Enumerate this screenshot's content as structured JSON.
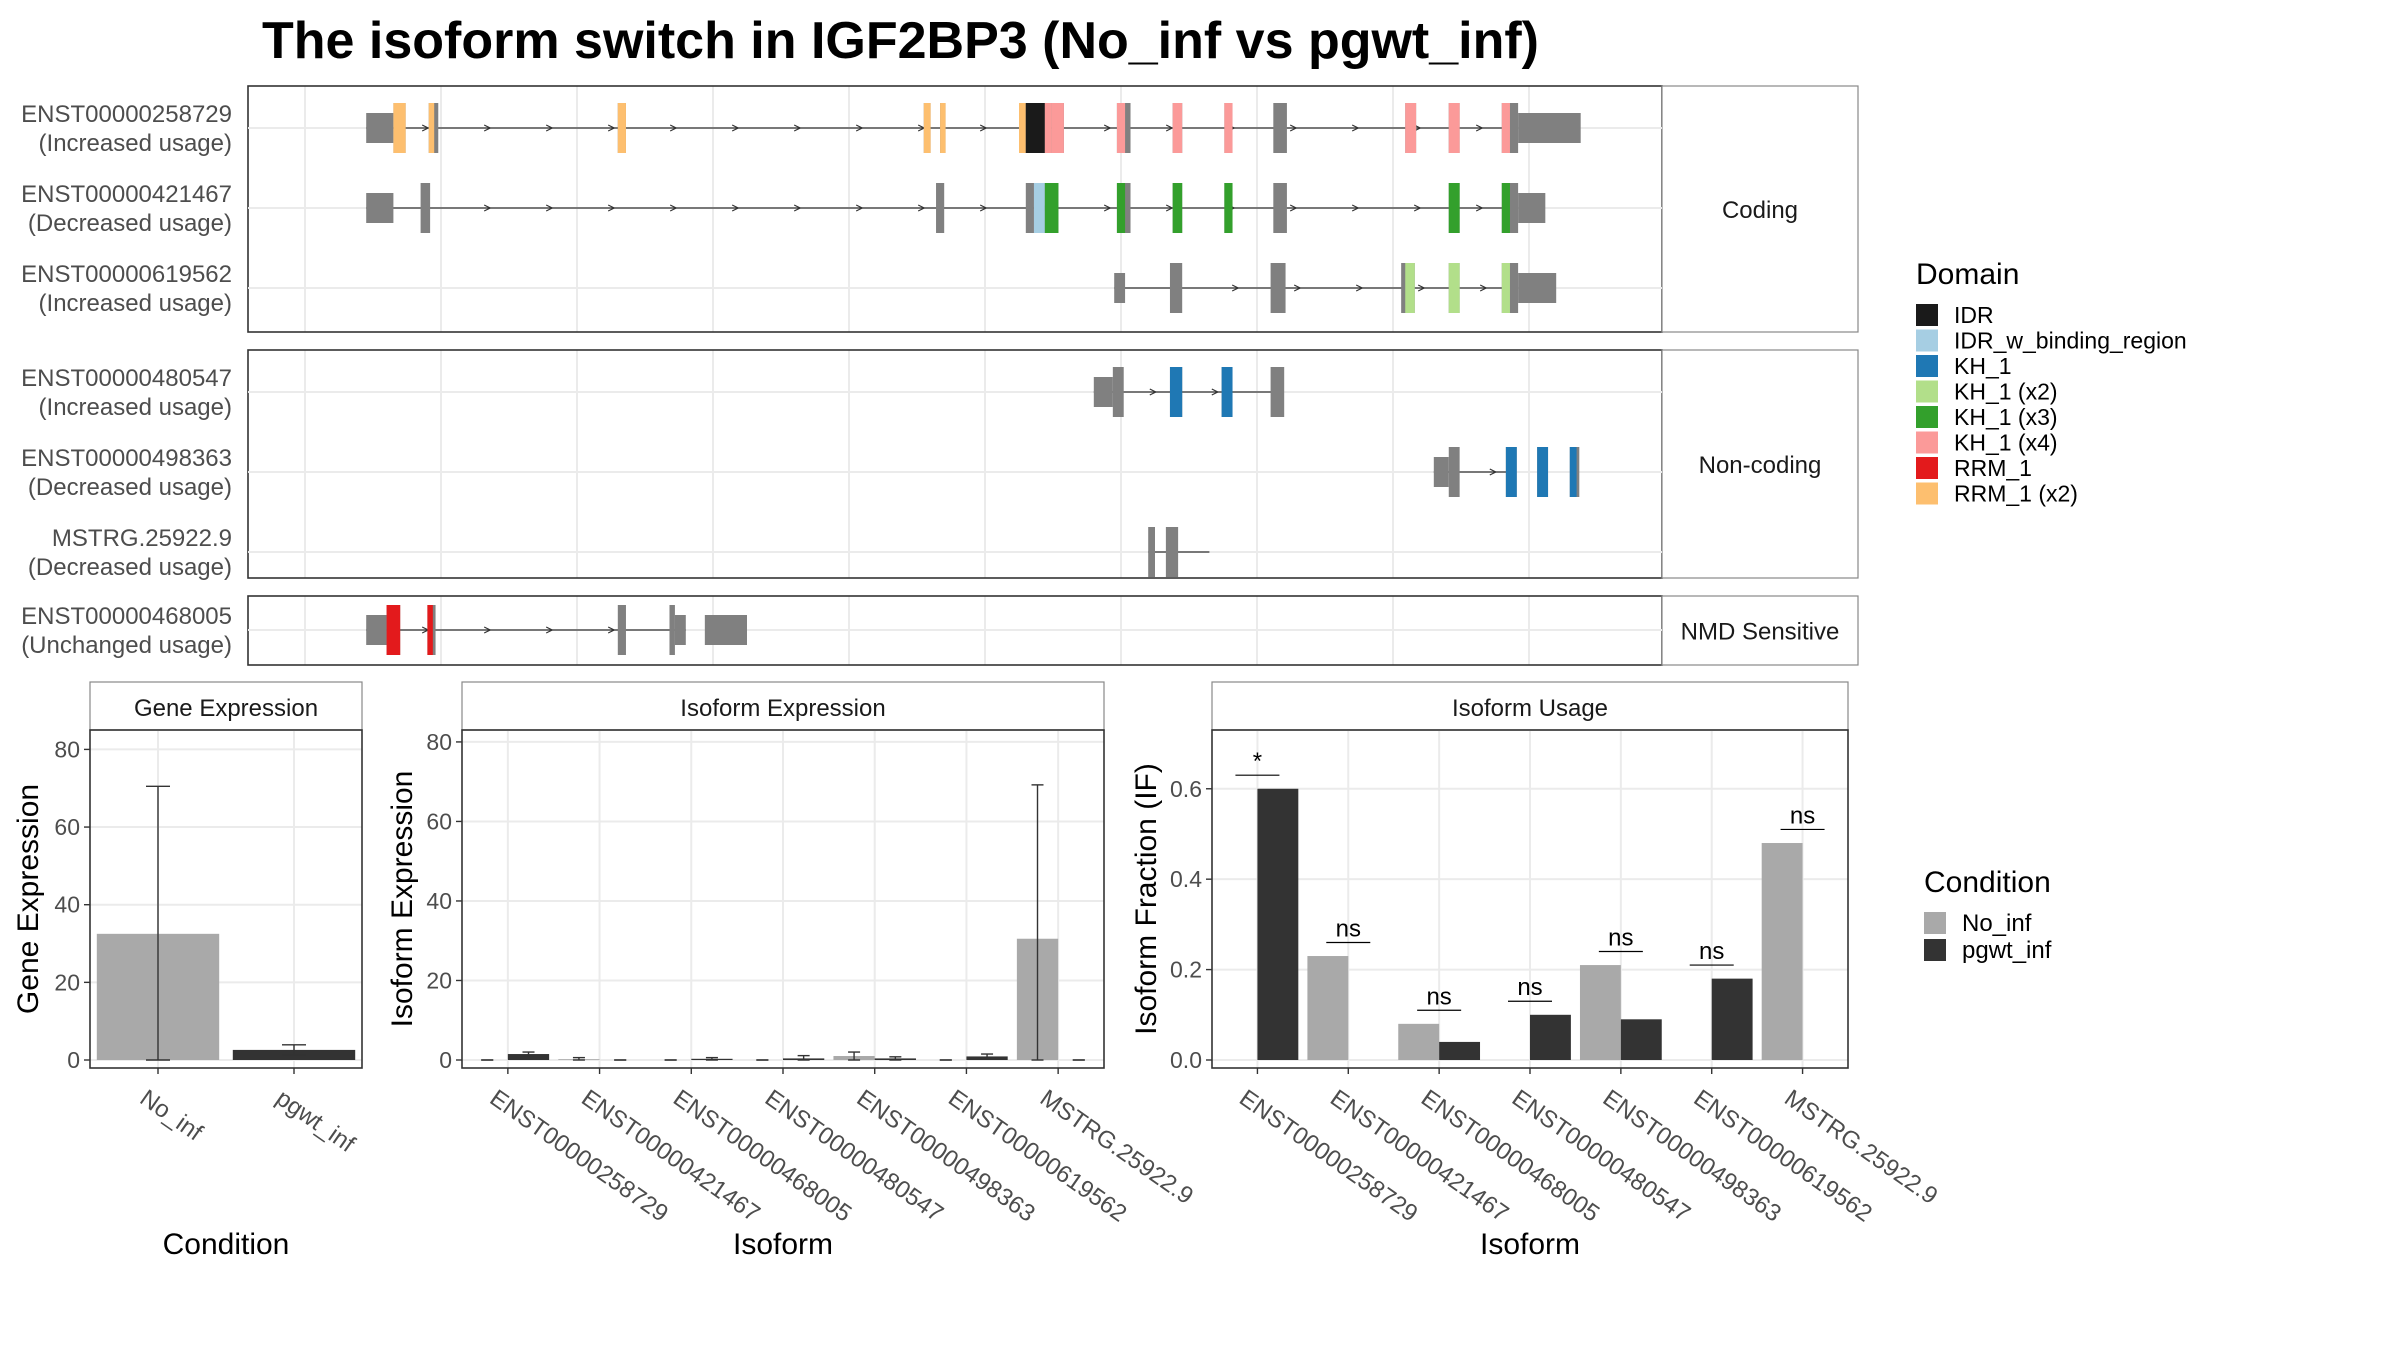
{
  "title": "The isoform switch in IGF2BP3 (No_inf vs pgwt_inf)",
  "colors": {
    "panel_border": "#333333",
    "grid": "#ebebeb",
    "intron": "#333333",
    "exon": "#808080",
    "No_inf": "#a9a9a9",
    "pgwt_inf": "#333333",
    "axis_text": "#4d4d4d"
  },
  "domain_legend": {
    "title": "Domain",
    "items": [
      {
        "label": "IDR",
        "color": "#1a1a1a"
      },
      {
        "label": "IDR_w_binding_region",
        "color": "#a6cee3"
      },
      {
        "label": "KH_1",
        "color": "#1f78b4"
      },
      {
        "label": "KH_1 (x2)",
        "color": "#b2df8a"
      },
      {
        "label": "KH_1 (x3)",
        "color": "#33a02c"
      },
      {
        "label": "KH_1 (x4)",
        "color": "#fb9a99"
      },
      {
        "label": "RRM_1",
        "color": "#e31a1c"
      },
      {
        "label": "RRM_1 (x2)",
        "color": "#fdbf6f"
      }
    ]
  },
  "condition_legend": {
    "title": "Condition",
    "items": [
      {
        "label": "No_inf",
        "color": "#a9a9a9"
      },
      {
        "label": "pgwt_inf",
        "color": "#333333"
      }
    ]
  },
  "structure": {
    "x_range": [
      0,
      100
    ],
    "groups": [
      {
        "label": "Coding",
        "isoforms": [
          {
            "name": "ENST00000258729",
            "usage": "(Increased usage)",
            "span": [
              4.5,
              89.2
            ],
            "exons": [
              [
                4.5,
                6.5,
                0
              ],
              [
                6.5,
                7.4,
                0.6
              ],
              [
                9.1,
                9.8,
                0.6
              ],
              [
                23.0,
                23.6,
                0.6
              ],
              [
                45.5,
                46.0,
                0.6
              ],
              [
                46.7,
                47.1,
                0.6
              ],
              [
                52.5,
                54.9,
                0.6
              ],
              [
                54.9,
                55.8,
                0.6
              ],
              [
                59.7,
                60.7,
                0.6
              ],
              [
                63.8,
                64.5,
                0.6
              ],
              [
                67.6,
                68.2,
                0.6
              ],
              [
                71.2,
                72.2,
                0.6
              ],
              [
                80.9,
                81.7,
                0.6
              ],
              [
                84.1,
                84.9,
                0.6
              ],
              [
                88.0,
                89.2,
                0.6
              ],
              [
                89.2,
                93.8,
                0
              ]
            ],
            "domains": [
              [
                6.5,
                7.4,
                "RRM_1 (x2)"
              ],
              [
                9.1,
                9.5,
                "RRM_1 (x2)"
              ],
              [
                23.0,
                23.6,
                "RRM_1 (x2)"
              ],
              [
                45.5,
                46.0,
                "RRM_1 (x2)"
              ],
              [
                46.7,
                47.1,
                "RRM_1 (x2)"
              ],
              [
                52.5,
                53.0,
                "RRM_1 (x2)"
              ],
              [
                53.0,
                54.4,
                "IDR"
              ],
              [
                54.4,
                54.9,
                "KH_1 (x4)"
              ],
              [
                54.9,
                55.8,
                "KH_1 (x4)"
              ],
              [
                59.7,
                60.3,
                "KH_1 (x4)"
              ],
              [
                63.8,
                64.5,
                "KH_1 (x4)"
              ],
              [
                67.6,
                68.2,
                "KH_1 (x4)"
              ],
              [
                80.9,
                81.7,
                "KH_1 (x4)"
              ],
              [
                84.1,
                84.9,
                "KH_1 (x4)"
              ],
              [
                88.0,
                88.6,
                "KH_1 (x4)"
              ]
            ]
          },
          {
            "name": "ENST00000421467",
            "usage": "(Decreased usage)",
            "span": [
              4.5,
              89.2
            ],
            "exons": [
              [
                4.5,
                6.5,
                0
              ],
              [
                8.5,
                9.2,
                0.6
              ],
              [
                46.4,
                47.0,
                0.6
              ],
              [
                53.0,
                53.6,
                0.6
              ],
              [
                53.6,
                54.4,
                0.6
              ],
              [
                54.4,
                55.4,
                0.6
              ],
              [
                59.7,
                60.7,
                0.6
              ],
              [
                63.8,
                64.5,
                0.6
              ],
              [
                67.6,
                68.2,
                0.6
              ],
              [
                71.2,
                72.2,
                0.6
              ],
              [
                84.1,
                84.9,
                0.6
              ],
              [
                88.0,
                89.2,
                0.6
              ],
              [
                89.2,
                91.2,
                0
              ]
            ],
            "domains": [
              [
                53.6,
                54.4,
                "IDR_w_binding_region"
              ],
              [
                54.4,
                55.4,
                "KH_1 (x3)"
              ],
              [
                59.7,
                60.3,
                "KH_1 (x3)"
              ],
              [
                63.8,
                64.5,
                "KH_1 (x3)"
              ],
              [
                67.6,
                68.2,
                "KH_1 (x3)"
              ],
              [
                84.1,
                84.9,
                "KH_1 (x3)"
              ],
              [
                88.0,
                88.6,
                "KH_1 (x3)"
              ]
            ]
          },
          {
            "name": "ENST00000619562",
            "usage": "(Increased usage)",
            "span": [
              59.5,
              89.2
            ],
            "exons": [
              [
                59.5,
                60.3,
                0
              ],
              [
                63.6,
                64.5,
                0.6
              ],
              [
                71.0,
                72.1,
                0.6
              ],
              [
                71.5,
                72.0,
                0.6
              ],
              [
                80.6,
                81.6,
                0.6
              ],
              [
                84.1,
                84.9,
                0.6
              ],
              [
                88.0,
                89.2,
                0.6
              ],
              [
                89.2,
                92.0,
                0
              ]
            ],
            "domains": [
              [
                80.9,
                81.6,
                "KH_1 (x2)"
              ],
              [
                84.1,
                84.9,
                "KH_1 (x2)"
              ],
              [
                88.0,
                88.6,
                "KH_1 (x2)"
              ]
            ]
          }
        ]
      },
      {
        "label": "Non-coding",
        "isoforms": [
          {
            "name": "ENST00000480547",
            "usage": "(Increased usage)",
            "span": [
              58.0,
              71.9
            ],
            "exons": [
              [
                58.0,
                59.4,
                0
              ],
              [
                59.4,
                60.2,
                0.6
              ],
              [
                63.6,
                64.5,
                0.6
              ],
              [
                67.4,
                68.2,
                0.6
              ],
              [
                71.0,
                72.0,
                0.6
              ]
            ],
            "domains": [
              [
                63.6,
                64.5,
                "KH_1"
              ],
              [
                67.4,
                68.2,
                "KH_1"
              ]
            ]
          },
          {
            "name": "ENST00000498363",
            "usage": "(Decreased usage)",
            "span": [
              83.0,
              89.0
            ],
            "exons": [
              [
                83.0,
                84.1,
                0
              ],
              [
                84.1,
                84.9,
                0.6
              ],
              [
                88.3,
                89.1,
                0.6
              ],
              [
                90.6,
                91.4,
                0.6
              ],
              [
                93.0,
                93.7,
                0.6
              ]
            ],
            "domains": [
              [
                88.3,
                89.1,
                "KH_1"
              ],
              [
                90.6,
                91.4,
                "KH_1"
              ],
              [
                93.0,
                93.5,
                "KH_1"
              ]
            ]
          },
          {
            "name": "MSTRG.25922.9",
            "usage": "(Decreased usage)",
            "span": [
              62.0,
              66.5
            ],
            "exons": [
              [
                62.0,
                62.5,
                0.6
              ],
              [
                63.3,
                64.2,
                0.6
              ]
            ],
            "domains": []
          }
        ]
      },
      {
        "label": "NMD Sensitive",
        "isoforms": [
          {
            "name": "ENST00000468005",
            "usage": "(Unchanged usage)",
            "span": [
              4.5,
              28.0
            ],
            "exons": [
              [
                4.5,
                6.0,
                0
              ],
              [
                6.0,
                7.0,
                0.6
              ],
              [
                9.0,
                9.6,
                0.6
              ],
              [
                23.0,
                23.6,
                0.6
              ],
              [
                26.8,
                27.2,
                0.6
              ],
              [
                27.2,
                28.0,
                0
              ],
              [
                29.4,
                32.5,
                0
              ]
            ],
            "domains": [
              [
                6.0,
                7.0,
                "RRM_1"
              ],
              [
                9.0,
                9.4,
                "RRM_1"
              ]
            ]
          }
        ]
      }
    ]
  },
  "chart_data": [
    {
      "type": "bar",
      "title": "Gene Expression",
      "xlabel": "Condition",
      "ylabel": "Gene Expression",
      "ylim": [
        0,
        85
      ],
      "yticks": [
        0,
        20,
        40,
        60,
        80
      ],
      "categories": [
        "No_inf",
        "pgwt_inf"
      ],
      "values": [
        32.5,
        2.6
      ],
      "error_low": [
        0,
        1.3
      ],
      "error_high": [
        70.5,
        3.9
      ],
      "colors": [
        "#a9a9a9",
        "#333333"
      ]
    },
    {
      "type": "bar",
      "title": "Isoform Expression",
      "xlabel": "Isoform",
      "ylabel": "Isoform Expression",
      "ylim": [
        0,
        83
      ],
      "yticks": [
        0,
        20,
        40,
        60,
        80
      ],
      "categories": [
        "ENST00000258729",
        "ENST00000421467",
        "ENST00000468005",
        "ENST00000480547",
        "ENST00000498363",
        "ENST00000619562",
        "MSTRG.25922.9"
      ],
      "series": [
        {
          "name": "No_inf",
          "values": [
            0,
            0.2,
            0,
            0,
            1.0,
            0,
            30.5
          ],
          "error_low": [
            0,
            0,
            0,
            0,
            0,
            0,
            0
          ],
          "error_high": [
            0,
            0.6,
            0,
            0,
            2.0,
            0,
            69.2
          ]
        },
        {
          "name": "pgwt_inf",
          "values": [
            1.5,
            0,
            0.3,
            0.4,
            0.4,
            0.9,
            0
          ],
          "error_low": [
            1.0,
            0,
            0,
            0,
            0,
            0.3,
            0
          ],
          "error_high": [
            2.0,
            0,
            0.6,
            1.1,
            0.8,
            1.5,
            0
          ]
        }
      ]
    },
    {
      "type": "bar",
      "title": "Isoform Usage",
      "xlabel": "Isoform",
      "ylabel": "Isoform Fraction (IF)",
      "ylim": [
        0,
        0.73
      ],
      "yticks": [
        0.0,
        0.2,
        0.4,
        0.6
      ],
      "categories": [
        "ENST00000258729",
        "ENST00000421467",
        "ENST00000468005",
        "ENST00000480547",
        "ENST00000498363",
        "ENST00000619562",
        "MSTRG.25922.9"
      ],
      "series": [
        {
          "name": "No_inf",
          "values": [
            0,
            0.23,
            0.08,
            0,
            0.21,
            0,
            0.48
          ]
        },
        {
          "name": "pgwt_inf",
          "values": [
            0.6,
            0,
            0.04,
            0.1,
            0.09,
            0.18,
            0
          ]
        }
      ],
      "significance": [
        "*",
        "ns",
        "ns",
        "ns",
        "ns",
        "ns",
        "ns"
      ],
      "significance_y": [
        0.63,
        0.26,
        0.11,
        0.13,
        0.24,
        0.21,
        0.51
      ]
    }
  ]
}
